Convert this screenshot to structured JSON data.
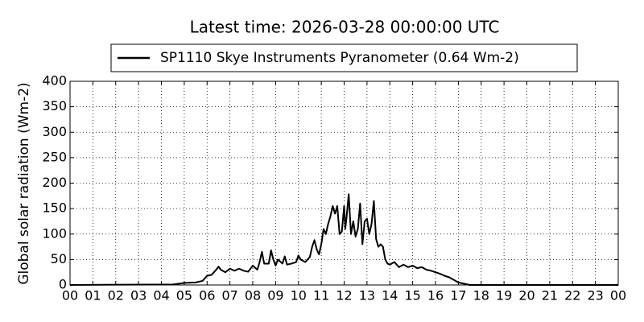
{
  "chart_data": {
    "type": "line",
    "title": "Latest time: 2026-03-28 00:00:00 UTC",
    "y_label": "Global solar radiation (Wm-2)",
    "x": [
      0,
      4.5,
      5.0,
      5.5,
      5.8,
      6.0,
      6.2,
      6.4,
      6.5,
      6.6,
      6.8,
      7.0,
      7.2,
      7.4,
      7.6,
      7.8,
      8.0,
      8.2,
      8.3,
      8.4,
      8.5,
      8.7,
      8.8,
      8.9,
      9.0,
      9.1,
      9.3,
      9.4,
      9.5,
      9.7,
      9.9,
      10.0,
      10.1,
      10.3,
      10.5,
      10.6,
      10.7,
      10.8,
      10.9,
      11.0,
      11.1,
      11.2,
      11.3,
      11.4,
      11.5,
      11.6,
      11.7,
      11.8,
      11.9,
      12.0,
      12.05,
      12.1,
      12.2,
      12.3,
      12.4,
      12.5,
      12.6,
      12.7,
      12.8,
      12.9,
      13.0,
      13.1,
      13.2,
      13.3,
      13.4,
      13.5,
      13.6,
      13.7,
      13.8,
      13.9,
      14.0,
      14.2,
      14.4,
      14.6,
      14.8,
      15.0,
      15.2,
      15.4,
      15.6,
      15.8,
      16.0,
      16.2,
      16.4,
      16.6,
      16.8,
      17.0,
      17.5,
      24
    ],
    "series": [
      {
        "name": "SP1110 Skye Instruments Pyranometer (0.64 Wm-2)",
        "color": "#000000",
        "values": [
          0,
          1,
          4,
          5,
          8,
          18,
          20,
          30,
          36,
          30,
          25,
          32,
          28,
          32,
          28,
          26,
          38,
          30,
          45,
          65,
          42,
          42,
          68,
          50,
          38,
          50,
          42,
          56,
          40,
          42,
          45,
          58,
          50,
          45,
          55,
          75,
          88,
          70,
          60,
          80,
          110,
          100,
          120,
          135,
          155,
          140,
          155,
          100,
          105,
          155,
          110,
          130,
          178,
          100,
          125,
          95,
          110,
          160,
          80,
          125,
          130,
          100,
          120,
          165,
          90,
          75,
          80,
          75,
          50,
          42,
          40,
          45,
          35,
          40,
          35,
          38,
          33,
          35,
          30,
          28,
          25,
          22,
          18,
          15,
          10,
          5,
          0,
          0
        ]
      }
    ],
    "xlim": [
      0,
      24
    ],
    "xticks": [
      {
        "value": 0,
        "label": "00"
      },
      {
        "value": 1,
        "label": "01"
      },
      {
        "value": 2,
        "label": "02"
      },
      {
        "value": 3,
        "label": "03"
      },
      {
        "value": 4,
        "label": "04"
      },
      {
        "value": 5,
        "label": "05"
      },
      {
        "value": 6,
        "label": "06"
      },
      {
        "value": 7,
        "label": "07"
      },
      {
        "value": 8,
        "label": "08"
      },
      {
        "value": 9,
        "label": "09"
      },
      {
        "value": 10,
        "label": "10"
      },
      {
        "value": 11,
        "label": "11"
      },
      {
        "value": 12,
        "label": "12"
      },
      {
        "value": 13,
        "label": "13"
      },
      {
        "value": 14,
        "label": "14"
      },
      {
        "value": 15,
        "label": "15"
      },
      {
        "value": 16,
        "label": "16"
      },
      {
        "value": 17,
        "label": "17"
      },
      {
        "value": 18,
        "label": "18"
      },
      {
        "value": 19,
        "label": "19"
      },
      {
        "value": 20,
        "label": "20"
      },
      {
        "value": 21,
        "label": "21"
      },
      {
        "value": 22,
        "label": "22"
      },
      {
        "value": 23,
        "label": "23"
      },
      {
        "value": 24,
        "label": "00"
      }
    ],
    "ylim": [
      0,
      400
    ],
    "yticks": [
      0,
      50,
      100,
      150,
      200,
      250,
      300,
      350,
      400
    ],
    "grid": true
  }
}
